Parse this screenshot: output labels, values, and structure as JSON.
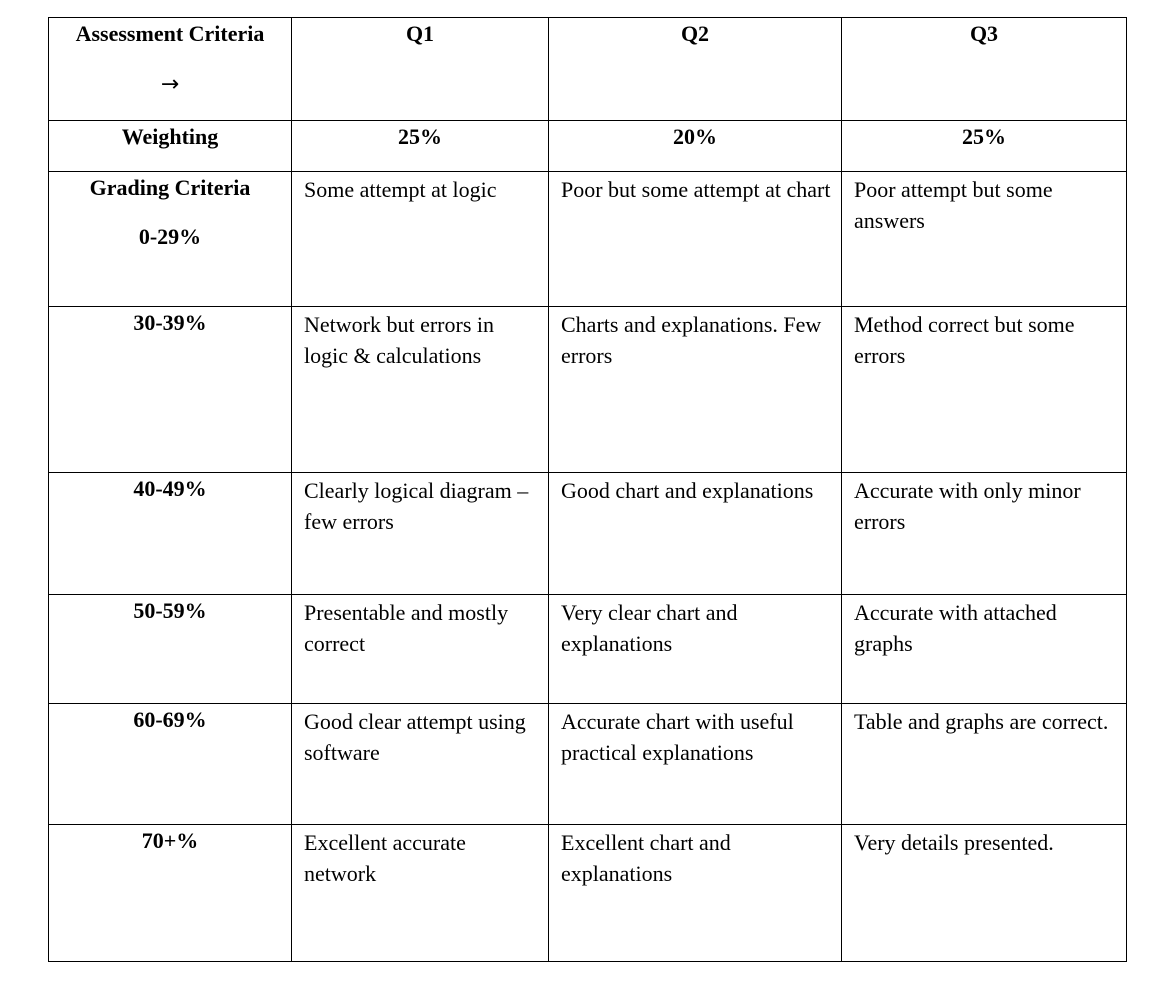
{
  "header": {
    "criteria_label": "Assessment Criteria",
    "arrow": "→",
    "columns": [
      "Q1",
      "Q2",
      "Q3"
    ]
  },
  "weighting": {
    "label": "Weighting",
    "values": [
      "25%",
      "20%",
      "25%"
    ]
  },
  "grading": {
    "label": "Grading Criteria",
    "rows": [
      {
        "band": "0-29%",
        "q1": "Some attempt at logic",
        "q2": "Poor but some attempt at chart",
        "q3": "Poor attempt but some answers"
      },
      {
        "band": "30-39%",
        "q1": "Network but errors in logic & calculations",
        "q2": "Charts and explanations. Few errors",
        "q3": "Method correct but some errors"
      },
      {
        "band": "40-49%",
        "q1": "Clearly logical diagram – few errors",
        "q2": "Good chart and explanations",
        "q3": "Accurate with only minor errors"
      },
      {
        "band": "50-59%",
        "q1": "Presentable and mostly correct",
        "q2": "Very clear chart and explanations",
        "q3": "Accurate with attached graphs"
      },
      {
        "band": "60-69%",
        "q1": "Good clear attempt using software",
        "q2": "Accurate chart with useful practical explanations",
        "q3": "Table and graphs are correct."
      },
      {
        "band": "70+%",
        "q1": "Excellent accurate network",
        "q2": "Excellent chart and explanations",
        "q3": "Very details presented."
      }
    ]
  }
}
